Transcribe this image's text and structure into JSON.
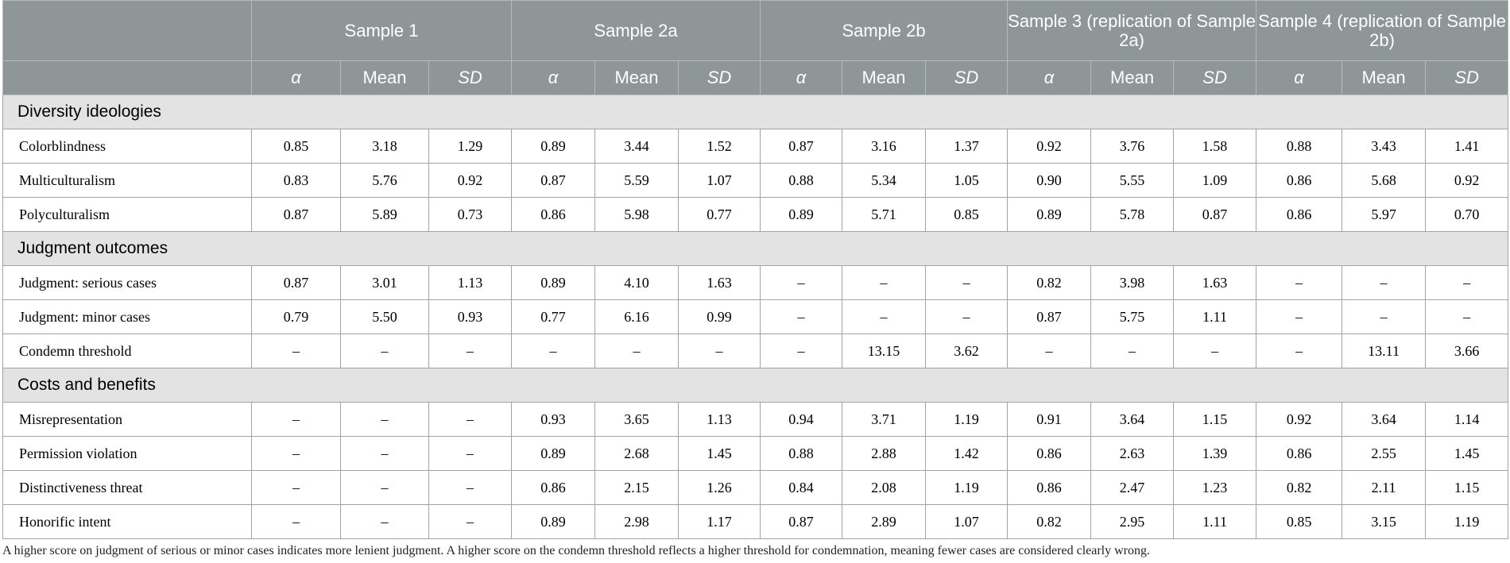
{
  "table": {
    "groups": [
      "Sample 1",
      "Sample 2a",
      "Sample 2b",
      "Sample 3 (replication of Sample 2a)",
      "Sample 4 (replication of Sample 2b)"
    ],
    "subheaders": [
      "α",
      "Mean",
      "SD"
    ],
    "sections": [
      {
        "title": "Diversity ideologies",
        "rows": [
          {
            "label": "Colorblindness",
            "cells": [
              "0.85",
              "3.18",
              "1.29",
              "0.89",
              "3.44",
              "1.52",
              "0.87",
              "3.16",
              "1.37",
              "0.92",
              "3.76",
              "1.58",
              "0.88",
              "3.43",
              "1.41"
            ]
          },
          {
            "label": "Multiculturalism",
            "cells": [
              "0.83",
              "5.76",
              "0.92",
              "0.87",
              "5.59",
              "1.07",
              "0.88",
              "5.34",
              "1.05",
              "0.90",
              "5.55",
              "1.09",
              "0.86",
              "5.68",
              "0.92"
            ]
          },
          {
            "label": "Polyculturalism",
            "cells": [
              "0.87",
              "5.89",
              "0.73",
              "0.86",
              "5.98",
              "0.77",
              "0.89",
              "5.71",
              "0.85",
              "0.89",
              "5.78",
              "0.87",
              "0.86",
              "5.97",
              "0.70"
            ]
          }
        ]
      },
      {
        "title": "Judgment outcomes",
        "rows": [
          {
            "label": "Judgment: serious cases",
            "cells": [
              "0.87",
              "3.01",
              "1.13",
              "0.89",
              "4.10",
              "1.63",
              "–",
              "–",
              "–",
              "0.82",
              "3.98",
              "1.63",
              "–",
              "–",
              "–"
            ]
          },
          {
            "label": "Judgment: minor cases",
            "cells": [
              "0.79",
              "5.50",
              "0.93",
              "0.77",
              "6.16",
              "0.99",
              "–",
              "–",
              "–",
              "0.87",
              "5.75",
              "1.11",
              "–",
              "–",
              "–"
            ]
          },
          {
            "label": "Condemn threshold",
            "cells": [
              "–",
              "–",
              "–",
              "–",
              "–",
              "–",
              "–",
              "13.15",
              "3.62",
              "–",
              "–",
              "–",
              "–",
              "13.11",
              "3.66"
            ]
          }
        ]
      },
      {
        "title": "Costs and benefits",
        "rows": [
          {
            "label": "Misrepresentation",
            "cells": [
              "–",
              "–",
              "–",
              "0.93",
              "3.65",
              "1.13",
              "0.94",
              "3.71",
              "1.19",
              "0.91",
              "3.64",
              "1.15",
              "0.92",
              "3.64",
              "1.14"
            ]
          },
          {
            "label": "Permission violation",
            "cells": [
              "–",
              "–",
              "–",
              "0.89",
              "2.68",
              "1.45",
              "0.88",
              "2.88",
              "1.42",
              "0.86",
              "2.63",
              "1.39",
              "0.86",
              "2.55",
              "1.45"
            ]
          },
          {
            "label": "Distinctiveness threat",
            "cells": [
              "–",
              "–",
              "–",
              "0.86",
              "2.15",
              "1.26",
              "0.84",
              "2.08",
              "1.19",
              "0.86",
              "2.47",
              "1.23",
              "0.82",
              "2.11",
              "1.15"
            ]
          },
          {
            "label": "Honorific intent",
            "cells": [
              "–",
              "–",
              "–",
              "0.89",
              "2.98",
              "1.17",
              "0.87",
              "2.89",
              "1.07",
              "0.82",
              "2.95",
              "1.11",
              "0.85",
              "3.15",
              "1.19"
            ]
          }
        ]
      }
    ],
    "footnote": "A higher score on judgment of serious or minor cases indicates more lenient judgment. A higher score on the condemn threshold reflects a higher threshold for condemnation, meaning fewer cases are considered clearly wrong."
  }
}
